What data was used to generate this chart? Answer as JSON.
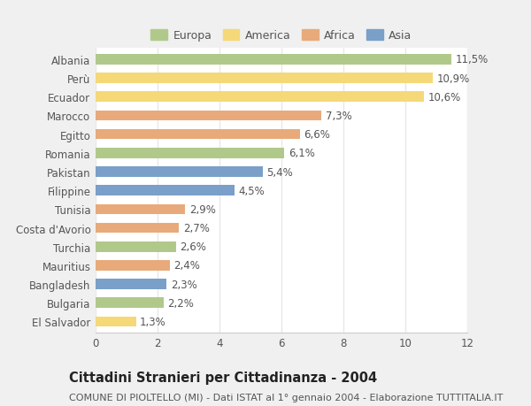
{
  "countries": [
    "Albania",
    "Perù",
    "Ecuador",
    "Marocco",
    "Egitto",
    "Romania",
    "Pakistan",
    "Filippine",
    "Tunisia",
    "Costa d'Avorio",
    "Turchia",
    "Mauritius",
    "Bangladesh",
    "Bulgaria",
    "El Salvador"
  ],
  "values": [
    11.5,
    10.9,
    10.6,
    7.3,
    6.6,
    6.1,
    5.4,
    4.5,
    2.9,
    2.7,
    2.6,
    2.4,
    2.3,
    2.2,
    1.3
  ],
  "labels": [
    "11,5%",
    "10,9%",
    "10,6%",
    "7,3%",
    "6,6%",
    "6,1%",
    "5,4%",
    "4,5%",
    "2,9%",
    "2,7%",
    "2,6%",
    "2,4%",
    "2,3%",
    "2,2%",
    "1,3%"
  ],
  "continents": [
    "Europa",
    "America",
    "America",
    "Africa",
    "Africa",
    "Europa",
    "Asia",
    "Asia",
    "Africa",
    "Africa",
    "Europa",
    "Africa",
    "Asia",
    "Europa",
    "America"
  ],
  "colors": {
    "Europa": "#b0c98a",
    "America": "#f5d878",
    "Africa": "#e8aa7a",
    "Asia": "#7a9fc8"
  },
  "legend_order": [
    "Europa",
    "America",
    "Africa",
    "Asia"
  ],
  "title": "Cittadini Stranieri per Cittadinanza - 2004",
  "subtitle": "COMUNE DI PIOLTELLO (MI) - Dati ISTAT al 1° gennaio 2004 - Elaborazione TUTTITALIA.IT",
  "xlim": [
    0,
    12
  ],
  "xticks": [
    0,
    2,
    4,
    6,
    8,
    10,
    12
  ],
  "figure_bg": "#f0f0f0",
  "axes_bg": "#ffffff",
  "grid_color": "#e8e8e8",
  "text_color": "#555555",
  "label_fontsize": 8.5,
  "title_fontsize": 10.5,
  "subtitle_fontsize": 8.0,
  "bar_height": 0.55
}
